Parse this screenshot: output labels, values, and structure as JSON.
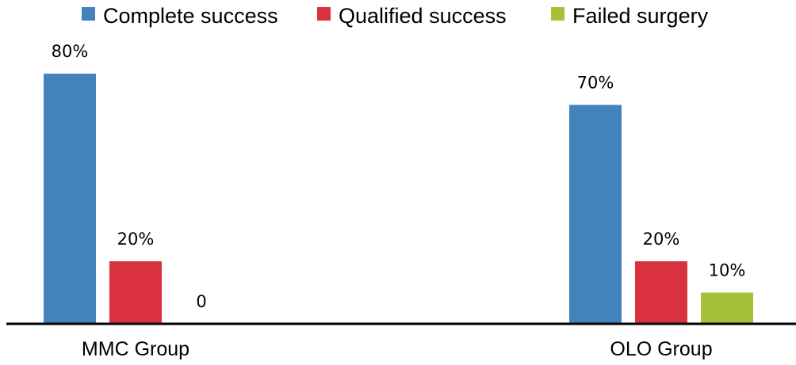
{
  "chart_data": {
    "type": "bar",
    "title": "",
    "xlabel": "",
    "ylabel": "",
    "ylim": [
      0,
      100
    ],
    "grid": false,
    "legend_position": "top",
    "categories": [
      "MMC Group",
      "OLO Group"
    ],
    "series": [
      {
        "name": "Complete success",
        "color": "#4382bb",
        "values": [
          80,
          70
        ],
        "labels": [
          "80%",
          "70%"
        ]
      },
      {
        "name": "Qualified success",
        "color": "#d9313d",
        "values": [
          20,
          20
        ],
        "labels": [
          "20%",
          "20%"
        ]
      },
      {
        "name": "Failed surgery",
        "color": "#a5c13a",
        "values": [
          0,
          10
        ],
        "labels": [
          "0",
          "10%"
        ]
      }
    ]
  }
}
